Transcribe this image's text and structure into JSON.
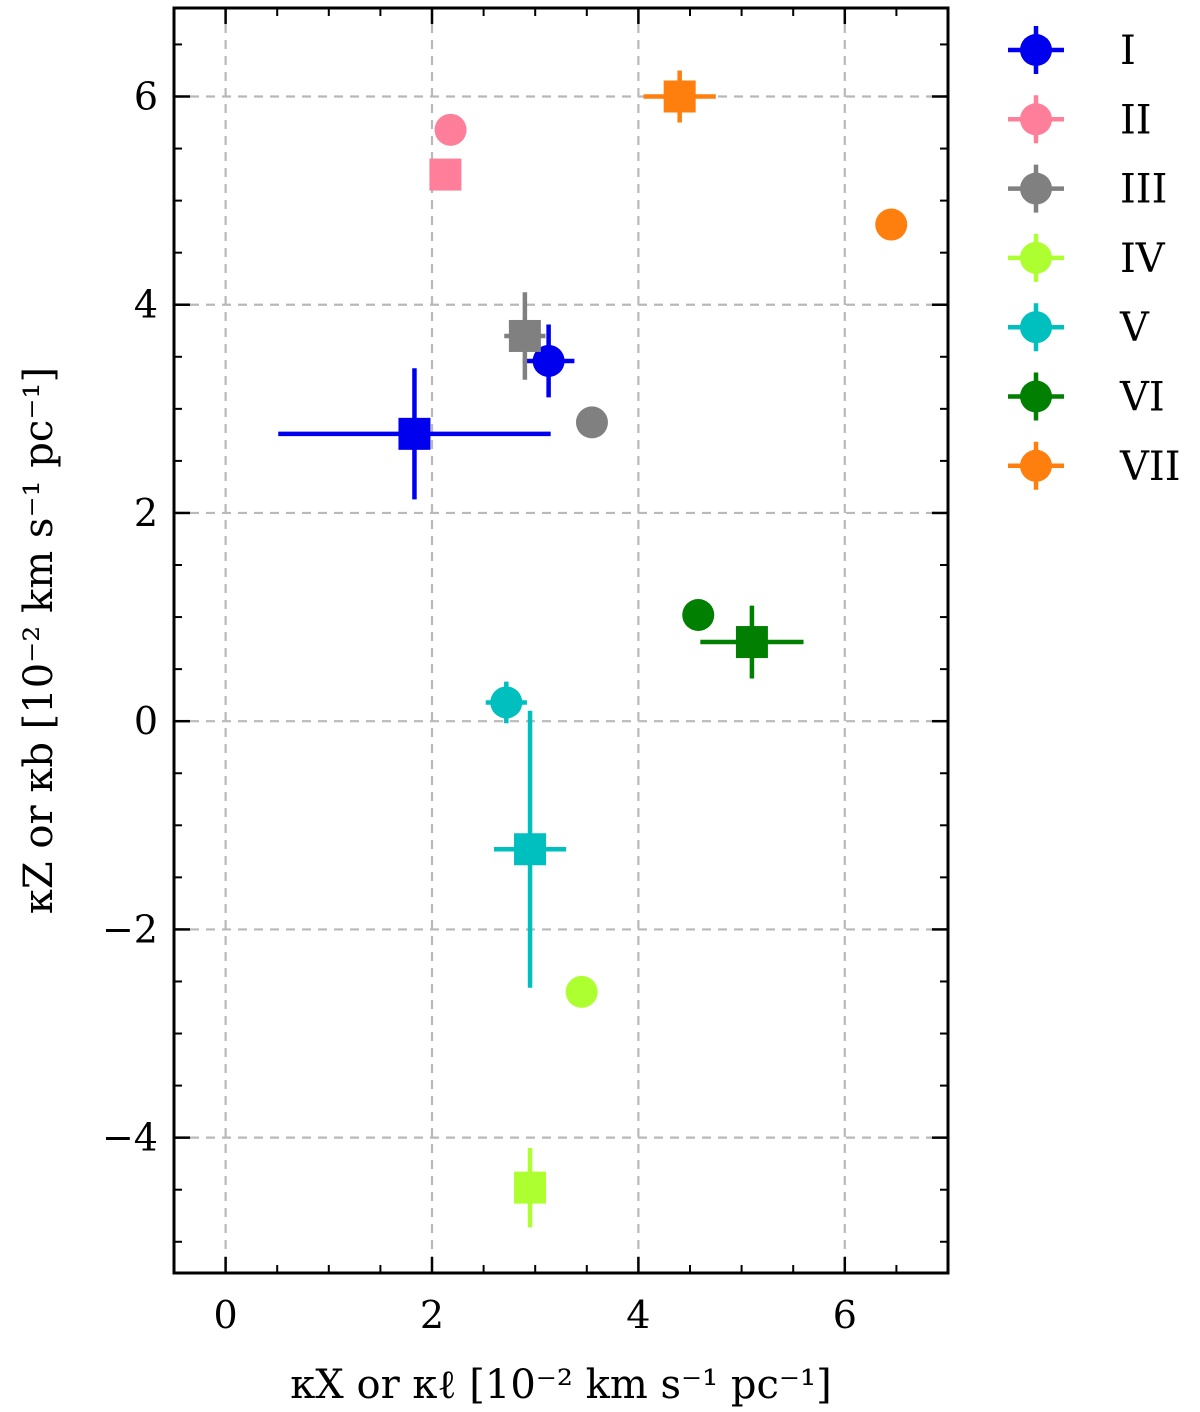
{
  "chart_data": {
    "type": "scatter",
    "xlabel": "κX or κℓ [10⁻² km s⁻¹ pc⁻¹]",
    "ylabel": "κZ or κb [10⁻² km s⁻¹ pc⁻¹]",
    "xlim": [
      -0.5,
      7.0
    ],
    "ylim": [
      -5.3,
      6.85
    ],
    "xticks": [
      0,
      2,
      4,
      6
    ],
    "yticks": [
      -4,
      -2,
      0,
      2,
      4,
      6
    ],
    "xtick_labels": [
      "0",
      "2",
      "4",
      "6"
    ],
    "ytick_labels": [
      "−4",
      "−2",
      "0",
      "2",
      "4",
      "6"
    ],
    "grid": true,
    "legend_position": "outside-right-top",
    "series": [
      {
        "name": "I",
        "color": "#0000ee",
        "circle": {
          "x": 3.13,
          "y": 3.46,
          "xerr": 0.25,
          "yerr": 0.35
        },
        "square": {
          "x": 1.83,
          "y": 2.76,
          "xerr": 1.32,
          "yerr": 0.63
        }
      },
      {
        "name": "II",
        "color": "#ff7f9a",
        "circle": {
          "x": 2.18,
          "y": 5.68,
          "xerr": 0,
          "yerr": 0
        },
        "square": {
          "x": 2.13,
          "y": 5.25,
          "xerr": 0.15,
          "yerr": 0.15
        }
      },
      {
        "name": "III",
        "color": "#808080",
        "circle": {
          "x": 3.55,
          "y": 2.87,
          "xerr": 0,
          "yerr": 0
        },
        "square": {
          "x": 2.9,
          "y": 3.7,
          "xerr": 0.2,
          "yerr": 0.42
        }
      },
      {
        "name": "IV",
        "color": "#adff2f",
        "circle": {
          "x": 3.45,
          "y": -2.6,
          "xerr": 0,
          "yerr": 0
        },
        "square": {
          "x": 2.95,
          "y": -4.48,
          "xerr": 0.1,
          "yerr": 0.38
        }
      },
      {
        "name": "V",
        "color": "#00bfbf",
        "circle": {
          "x": 2.72,
          "y": 0.18,
          "xerr": 0.2,
          "yerr": 0.2
        },
        "square": {
          "x": 2.95,
          "y": -1.23,
          "xerr": 0.35,
          "yerr": 1.33
        }
      },
      {
        "name": "VI",
        "color": "#007f00",
        "circle": {
          "x": 4.58,
          "y": 1.02,
          "xerr": 0,
          "yerr": 0
        },
        "square": {
          "x": 5.1,
          "y": 0.76,
          "xerr": 0.5,
          "yerr": 0.35
        }
      },
      {
        "name": "VII",
        "color": "#ff7f0e",
        "circle": {
          "x": 6.45,
          "y": 4.77,
          "xerr": 0,
          "yerr": 0
        },
        "square": {
          "x": 4.4,
          "y": 6.0,
          "xerr": 0.35,
          "yerr": 0.25
        }
      }
    ]
  }
}
